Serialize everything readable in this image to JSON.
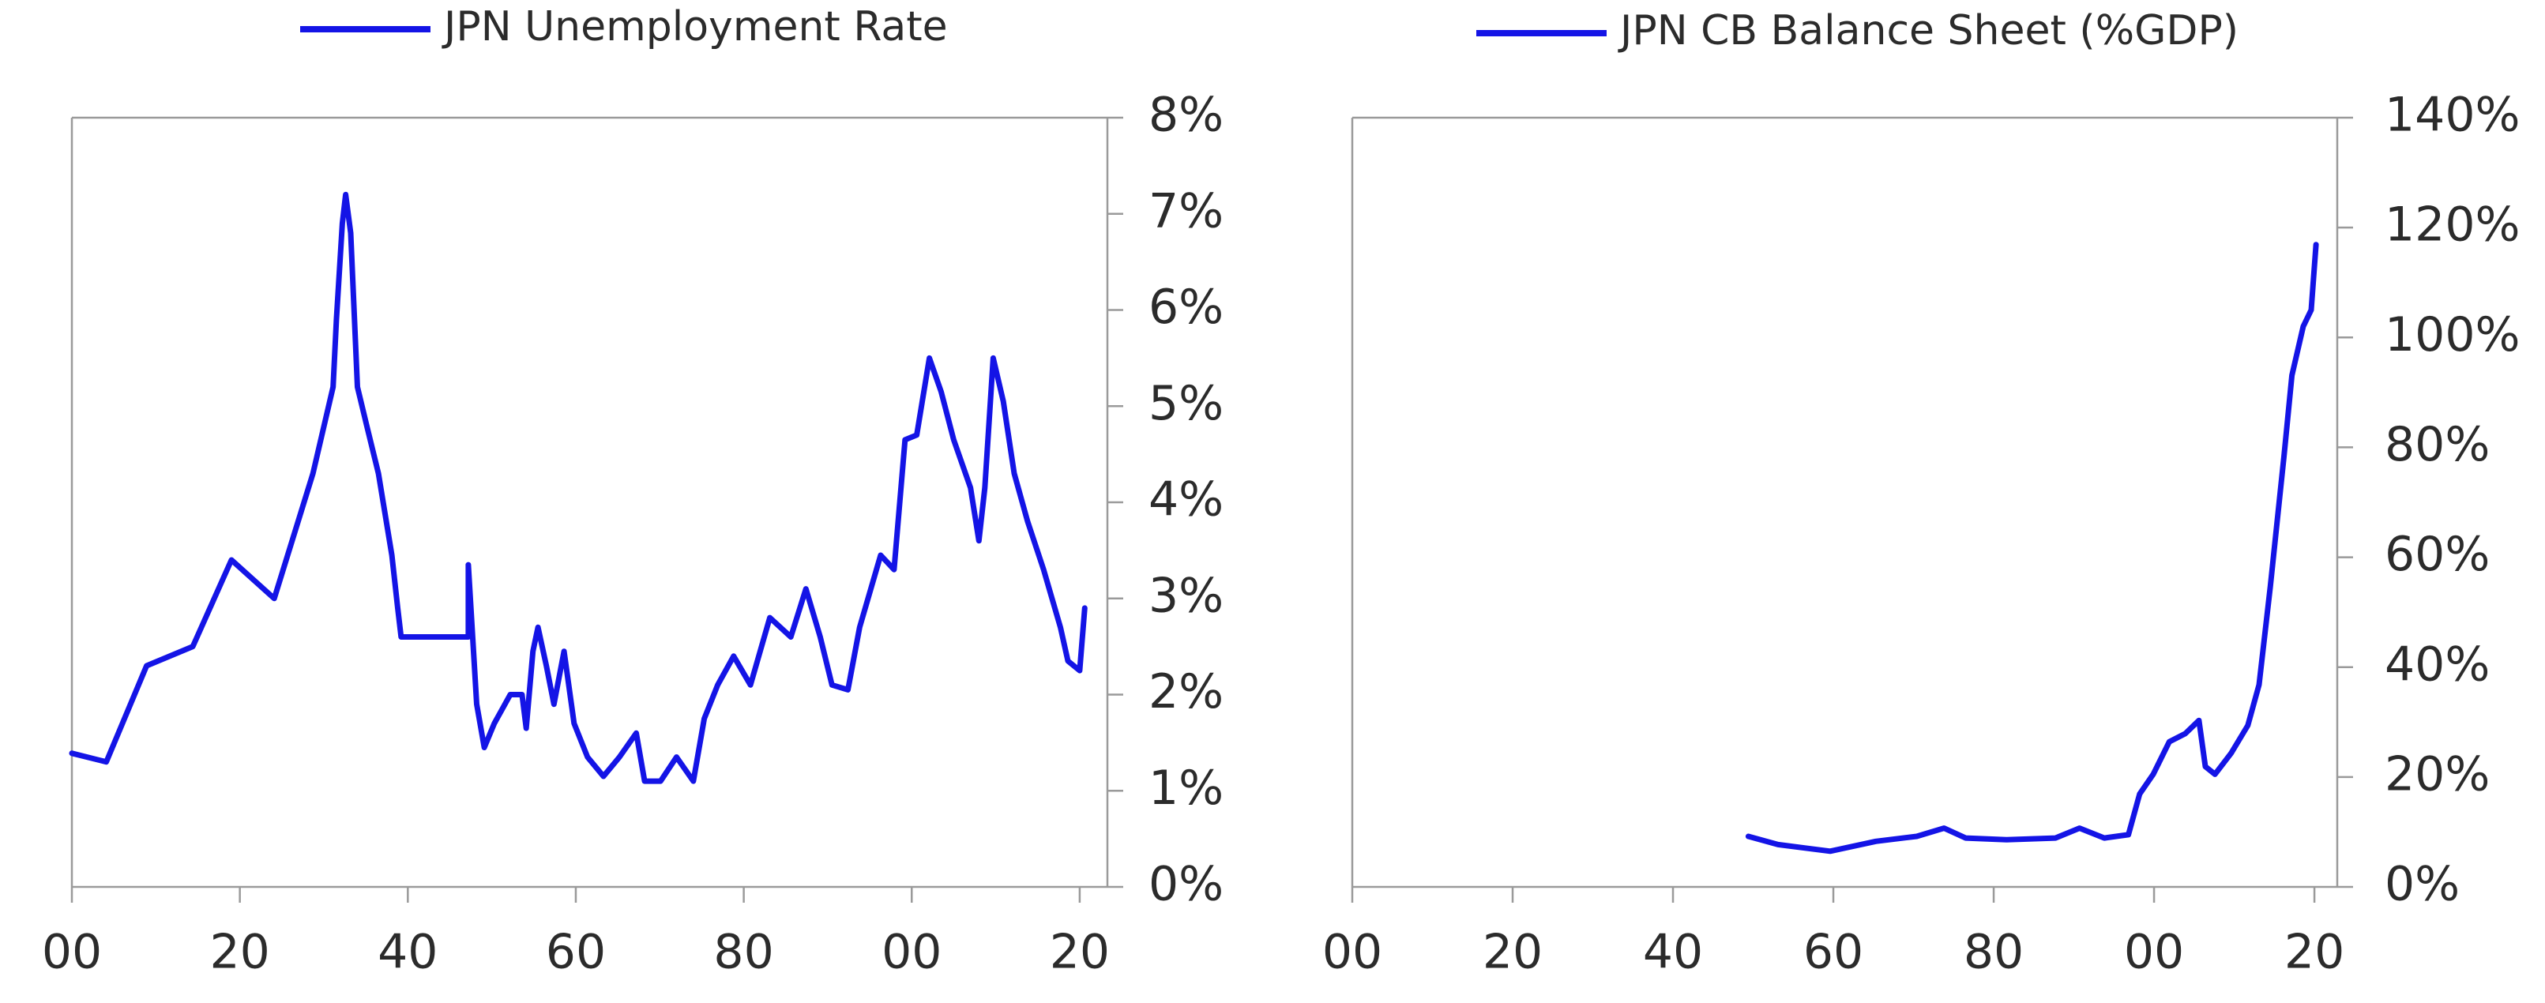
{
  "chart_data": [
    {
      "type": "line",
      "x": [
        1900,
        1904.1,
        1908.9,
        1914.4,
        1919.0,
        1924.1,
        1928.7,
        1931.1,
        1931.5,
        1932.2,
        1932.6,
        1933.2,
        1934.0,
        1935.1,
        1936.5,
        1938.1,
        1938.8,
        1939.2,
        1947.2,
        1947.2,
        1948.2,
        1949.1,
        1950.3,
        1952.2,
        1953.6,
        1954.1,
        1954.9,
        1955.5,
        1956.5,
        1957.4,
        1958.6,
        1959.8,
        1961.4,
        1963.3,
        1965.2,
        1967.2,
        1968.2,
        1970.1,
        1972.0,
        1974.0,
        1975.3,
        1976.9,
        1978.8,
        1980.8,
        1983.1,
        1985.6,
        1987.4,
        1989.1,
        1990.5,
        1992.4,
        1993.8,
        1996.3,
        1997.9,
        1999.2,
        2000.6,
        2002.1,
        2003.5,
        2005.0,
        2007.0,
        2008.0,
        2008.7,
        2009.7,
        2010.9,
        2012.2,
        2013.8,
        2015.7,
        2017.7,
        2018.6,
        2020.0,
        2020.6
      ],
      "series": [
        {
          "name": "JPN Unemployment Rate",
          "color": "#1414e6",
          "values": [
            1.39,
            1.3,
            2.3,
            2.5,
            3.4,
            3.0,
            4.3,
            5.2,
            5.9,
            6.9,
            7.2,
            6.8,
            5.2,
            4.8,
            4.3,
            3.45,
            2.9,
            2.6,
            2.6,
            3.35,
            1.9,
            1.45,
            1.7,
            2.0,
            2.0,
            1.65,
            2.45,
            2.7,
            2.3,
            1.9,
            2.45,
            1.7,
            1.35,
            1.15,
            1.35,
            1.6,
            1.1,
            1.1,
            1.35,
            1.1,
            1.75,
            2.1,
            2.4,
            2.1,
            2.8,
            2.6,
            3.1,
            2.6,
            2.1,
            2.05,
            2.7,
            3.45,
            3.3,
            4.65,
            4.7,
            5.5,
            5.15,
            4.65,
            4.15,
            3.6,
            4.15,
            5.5,
            5.05,
            4.3,
            3.8,
            3.3,
            2.7,
            2.35,
            2.25,
            2.9
          ]
        }
      ],
      "xlim": [
        1900,
        2023.3
      ],
      "xticks": [
        {
          "value": 1900,
          "label": "00"
        },
        {
          "value": 1920,
          "label": "20"
        },
        {
          "value": 1940,
          "label": "40"
        },
        {
          "value": 1960,
          "label": "60"
        },
        {
          "value": 1980,
          "label": "80"
        },
        {
          "value": 2000,
          "label": "00"
        },
        {
          "value": 2020,
          "label": "20"
        }
      ],
      "ylim": [
        0,
        8
      ],
      "yticks": [
        {
          "value": 0,
          "label": "0%"
        },
        {
          "value": 1,
          "label": "1%"
        },
        {
          "value": 2,
          "label": "2%"
        },
        {
          "value": 3,
          "label": "3%"
        },
        {
          "value": 4,
          "label": "4%"
        },
        {
          "value": 5,
          "label": "5%"
        },
        {
          "value": 6,
          "label": "6%"
        },
        {
          "value": 7,
          "label": "7%"
        },
        {
          "value": 8,
          "label": "8%"
        }
      ]
    },
    {
      "type": "line",
      "x": [
        1949.4,
        1953.1,
        1959.6,
        1965.3,
        1970.4,
        1973.8,
        1976.5,
        1981.6,
        1987.7,
        1990.7,
        1993.8,
        1996.8,
        1998.2,
        1999.9,
        2001.9,
        2003.9,
        2005.6,
        2006.4,
        2007.6,
        2009.6,
        2011.7,
        2013.1,
        2014.5,
        2016.2,
        2017.2,
        2018.6,
        2019.6,
        2020.2
      ],
      "series": [
        {
          "name": "JPN CB Balance Sheet (%GDP)",
          "color": "#1414e6",
          "values": [
            9.2,
            7.7,
            6.5,
            8.3,
            9.2,
            10.7,
            8.9,
            8.6,
            8.9,
            10.7,
            8.9,
            9.5,
            16.9,
            20.5,
            26.4,
            27.9,
            30.3,
            21.9,
            20.5,
            24.3,
            29.4,
            36.8,
            54.6,
            78.3,
            93.1,
            102.0,
            105,
            116.9
          ]
        }
      ],
      "xlim": [
        1900,
        2022.85
      ],
      "xticks": [
        {
          "value": 1900,
          "label": "00"
        },
        {
          "value": 1920,
          "label": "20"
        },
        {
          "value": 1940,
          "label": "40"
        },
        {
          "value": 1960,
          "label": "60"
        },
        {
          "value": 1980,
          "label": "80"
        },
        {
          "value": 2000,
          "label": "00"
        },
        {
          "value": 2020,
          "label": "20"
        }
      ],
      "ylim": [
        0,
        140
      ],
      "yticks": [
        {
          "value": 0,
          "label": "0%"
        },
        {
          "value": 20,
          "label": "20%"
        },
        {
          "value": 40,
          "label": "40%"
        },
        {
          "value": 60,
          "label": "60%"
        },
        {
          "value": 80,
          "label": "80%"
        },
        {
          "value": 100,
          "label": "100%"
        },
        {
          "value": 120,
          "label": "120%"
        },
        {
          "value": 140,
          "label": "140%"
        }
      ]
    }
  ]
}
